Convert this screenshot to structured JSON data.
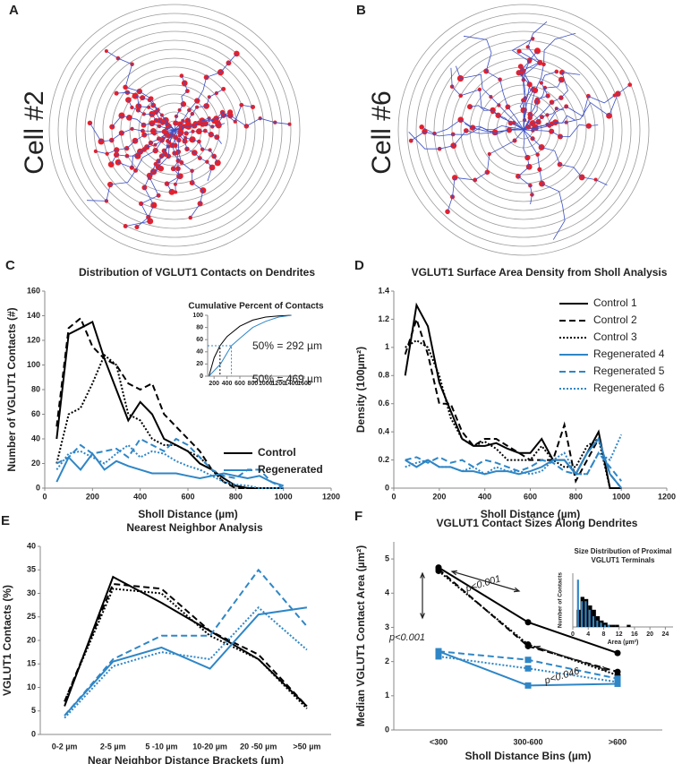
{
  "panels": [
    {
      "letter": "A",
      "label": "Cell #2"
    },
    {
      "letter": "B",
      "label": "Cell #6"
    }
  ],
  "chart_data": [
    {
      "letter": "C",
      "type": "line",
      "title": "Distribution of VGLUT1 Contacts on Dendrites",
      "xlabel": "Sholl Distance (µm)",
      "ylabel": "Number of VGLUT1 Contacts (#)",
      "xlim": [
        0,
        1200
      ],
      "xticks": [
        0,
        200,
        400,
        600,
        800,
        1000,
        1200
      ],
      "ylim": [
        0,
        160
      ],
      "yticks": [
        0,
        20,
        40,
        60,
        80,
        100,
        120,
        140,
        160
      ],
      "legend": "lower right",
      "x": [
        50,
        100,
        150,
        200,
        250,
        300,
        350,
        400,
        450,
        500,
        550,
        600,
        650,
        700,
        750,
        800,
        850,
        900,
        950,
        1000
      ],
      "series": [
        {
          "name": "Control",
          "color": "#000000",
          "dash": "solid",
          "values": [
            40,
            125,
            130,
            135,
            105,
            80,
            55,
            70,
            60,
            40,
            35,
            30,
            20,
            15,
            8,
            2,
            0,
            0,
            0,
            0
          ]
        },
        {
          "color": "#000000",
          "dash": "dashed",
          "values": [
            50,
            130,
            138,
            115,
            105,
            100,
            85,
            80,
            85,
            60,
            50,
            40,
            30,
            15,
            5,
            0,
            0,
            0,
            0,
            0
          ]
        },
        {
          "color": "#000000",
          "dash": "dotted",
          "values": [
            20,
            60,
            65,
            85,
            108,
            100,
            60,
            55,
            40,
            35,
            35,
            30,
            25,
            15,
            5,
            2,
            0,
            0,
            0,
            0
          ]
        },
        {
          "name": "Regenerated",
          "color": "#2f86c6",
          "dash": "solid",
          "values": [
            5,
            25,
            15,
            28,
            15,
            22,
            18,
            15,
            12,
            12,
            12,
            10,
            8,
            10,
            12,
            10,
            8,
            10,
            5,
            2
          ]
        },
        {
          "color": "#2f86c6",
          "dash": "dashed",
          "values": [
            20,
            25,
            35,
            28,
            30,
            32,
            25,
            40,
            35,
            30,
            40,
            35,
            25,
            15,
            10,
            8,
            15,
            15,
            5,
            0
          ]
        },
        {
          "color": "#2f86c6",
          "dash": "dotted",
          "values": [
            15,
            28,
            30,
            25,
            20,
            28,
            35,
            25,
            30,
            28,
            22,
            18,
            15,
            10,
            5,
            3,
            2,
            0,
            0,
            0
          ]
        }
      ],
      "inset": {
        "type": "line",
        "title": "Cumulative Percent of Contacts",
        "xlim": [
          100,
          1600
        ],
        "xticks": [
          200,
          400,
          600,
          800,
          1000,
          1200,
          1400,
          1600
        ],
        "ylim": [
          0,
          100
        ],
        "yticks": [
          0,
          20,
          40,
          60,
          80,
          100
        ],
        "series": [
          {
            "color": "#000000",
            "dash": "solid",
            "x": [
              120,
              200,
              292,
              400,
              600,
              800,
              1000,
              1200,
              1400
            ],
            "values": [
              0,
              30,
              50,
              65,
              82,
              92,
              97,
              99,
              100
            ]
          },
          {
            "color": "#2f86c6",
            "dash": "solid",
            "x": [
              120,
              300,
              469,
              600,
              800,
              1000,
              1200,
              1400
            ],
            "values": [
              0,
              20,
              50,
              62,
              80,
              90,
              97,
              100
            ]
          }
        ],
        "annotations": [
          {
            "text": "50% = 292 µm",
            "color": "#000000"
          },
          {
            "text": "50% = 469 µm",
            "color": "#2f86c6"
          }
        ]
      }
    },
    {
      "letter": "D",
      "type": "line",
      "title": "VGLUT1 Surface Area Density from Sholl Analysis",
      "xlabel": "Sholl Distance (µm)",
      "ylabel": "Density (100µm²)",
      "xlim": [
        0,
        1200
      ],
      "xticks": [
        0,
        200,
        400,
        600,
        800,
        1000,
        1200
      ],
      "ylim": [
        0,
        1.4
      ],
      "yticks": [
        0,
        0.2,
        0.4,
        0.6,
        0.8,
        1,
        1.2,
        1.4
      ],
      "legend": "upper right",
      "x": [
        50,
        100,
        150,
        200,
        250,
        300,
        350,
        400,
        450,
        500,
        550,
        600,
        650,
        700,
        750,
        800,
        850,
        900,
        950,
        1000
      ],
      "series": [
        {
          "name": "Control 1",
          "color": "#000000",
          "dash": "solid",
          "values": [
            0.8,
            1.3,
            1.15,
            0.75,
            0.55,
            0.35,
            0.3,
            0.3,
            0.32,
            0.28,
            0.25,
            0.25,
            0.35,
            0.2,
            0.2,
            0.1,
            0.25,
            0.4,
            0,
            0
          ]
        },
        {
          "name": "Control 2",
          "color": "#000000",
          "dash": "dashed",
          "values": [
            0.95,
            1.2,
            0.95,
            0.6,
            0.6,
            0.4,
            0.3,
            0.35,
            0.35,
            0.3,
            0.25,
            0.2,
            0.2,
            0.2,
            0.45,
            0.05,
            0.2,
            0.35,
            0.1,
            0
          ]
        },
        {
          "name": "Control 3",
          "color": "#000000",
          "dash": "dotted",
          "values": [
            1.0,
            1.05,
            1.0,
            0.8,
            0.5,
            0.35,
            0.3,
            0.33,
            0.28,
            0.2,
            0.2,
            0.2,
            0.3,
            0.2,
            0.15,
            0.15,
            0.3,
            0.35,
            0,
            0
          ]
        },
        {
          "name": "Regenerated 4",
          "color": "#2f86c6",
          "dash": "solid",
          "values": [
            0.2,
            0.15,
            0.2,
            0.15,
            0.15,
            0.12,
            0.12,
            0.1,
            0.12,
            0.12,
            0.1,
            0.12,
            0.15,
            0.2,
            0.2,
            0.1,
            0.25,
            0.35,
            0.1,
            0
          ]
        },
        {
          "name": "Regenerated 5",
          "color": "#2f86c6",
          "dash": "dashed",
          "values": [
            0.2,
            0.22,
            0.18,
            0.22,
            0.18,
            0.2,
            0.15,
            0.2,
            0.18,
            0.15,
            0.12,
            0.15,
            0.2,
            0.18,
            0.12,
            0.1,
            0.1,
            0.25,
            0.15,
            0.05
          ]
        },
        {
          "name": "Regenerated 6",
          "color": "#2f86c6",
          "dash": "dotted",
          "values": [
            0.15,
            0.18,
            0.2,
            0.15,
            0.15,
            0.12,
            0.15,
            0.1,
            0.15,
            0.12,
            0.12,
            0.1,
            0.12,
            0.2,
            0.25,
            0.1,
            0.1,
            0.25,
            0.2,
            0.38
          ]
        }
      ]
    },
    {
      "letter": "E",
      "type": "line",
      "title": "Nearest Neighbor Analysis",
      "xlabel": "Near Neighbor Distance Brackets (µm)",
      "ylabel": "VGLUT1 Contacts (%)",
      "categories": [
        "0-2 µm",
        "2-5 µm",
        "5 -10 µm",
        "10-20 µm",
        "20 -50 µm",
        ">50 µm"
      ],
      "ylim": [
        0,
        40
      ],
      "yticks": [
        0,
        5,
        10,
        15,
        20,
        25,
        30,
        35,
        40
      ],
      "series": [
        {
          "color": "#000000",
          "dash": "solid",
          "values": [
            6,
            33.5,
            28,
            22,
            16,
            6
          ]
        },
        {
          "color": "#000000",
          "dash": "dashed",
          "values": [
            7,
            32,
            31,
            22,
            17,
            6
          ]
        },
        {
          "color": "#000000",
          "dash": "dotted",
          "values": [
            7,
            31,
            30,
            21,
            16,
            5.5
          ]
        },
        {
          "color": "#2f86c6",
          "dash": "solid",
          "values": [
            4,
            15.5,
            18.5,
            14,
            25.5,
            27
          ]
        },
        {
          "color": "#2f86c6",
          "dash": "dashed",
          "values": [
            4,
            16,
            21,
            21,
            35,
            23
          ]
        },
        {
          "color": "#2f86c6",
          "dash": "dotted",
          "values": [
            3.5,
            14.5,
            17.5,
            16,
            27,
            18
          ]
        }
      ]
    },
    {
      "letter": "F",
      "type": "line",
      "title": "VGLUT1 Contact Sizes Along Dendrites",
      "xlabel": "Sholl Distance Bins (µm)",
      "ylabel": "Median VGLUT1 Contact Area (µm²)",
      "categories": [
        "<300",
        "300-600",
        ">600"
      ],
      "ylim": [
        0,
        5.5
      ],
      "yticks": [
        0,
        1,
        2,
        3,
        4,
        5
      ],
      "series": [
        {
          "color": "#000000",
          "dash": "solid",
          "marker": "circle",
          "values": [
            4.75,
            3.15,
            2.25
          ]
        },
        {
          "color": "#000000",
          "dash": "dashed",
          "marker": "circle",
          "values": [
            4.7,
            2.45,
            1.7
          ]
        },
        {
          "color": "#000000",
          "dash": "dotted",
          "marker": "circle",
          "values": [
            4.65,
            2.5,
            1.6
          ]
        },
        {
          "color": "#2f86c6",
          "dash": "solid",
          "marker": "square",
          "values": [
            2.3,
            1.3,
            1.35
          ]
        },
        {
          "color": "#2f86c6",
          "dash": "dashed",
          "marker": "square",
          "values": [
            2.3,
            2.05,
            1.5
          ]
        },
        {
          "color": "#2f86c6",
          "dash": "dotted",
          "marker": "square",
          "values": [
            2.15,
            1.8,
            1.4
          ]
        }
      ],
      "annotations": [
        {
          "text": "p<0.001"
        },
        {
          "text": "p<0.001"
        },
        {
          "text": "p<0.046"
        }
      ],
      "inset": {
        "type": "histogram",
        "title": [
          "Size Distribution of Proximal",
          "VGLUT1 Terminals"
        ],
        "xlabel": "Area (µm²)",
        "ylabel": "Number of Contacts",
        "xlim": [
          0,
          26
        ],
        "xticks": [
          0,
          4,
          8,
          12,
          16,
          20,
          24
        ],
        "ylim": [
          0,
          25
        ],
        "bins": [
          1,
          2,
          3,
          4,
          5,
          6,
          7,
          8,
          9,
          10,
          11,
          12,
          13,
          14,
          15
        ],
        "series": [
          {
            "color": "#000000",
            "values": [
              8,
              14,
              13,
              10,
              8,
              5,
              3,
              2,
              1,
              1,
              1,
              0,
              0,
              1
            ]
          },
          {
            "color": "#2f86c6",
            "values": [
              22,
              12,
              12,
              8,
              5,
              3,
              2,
              1,
              1,
              0,
              0,
              0,
              0,
              0
            ]
          }
        ]
      }
    }
  ]
}
